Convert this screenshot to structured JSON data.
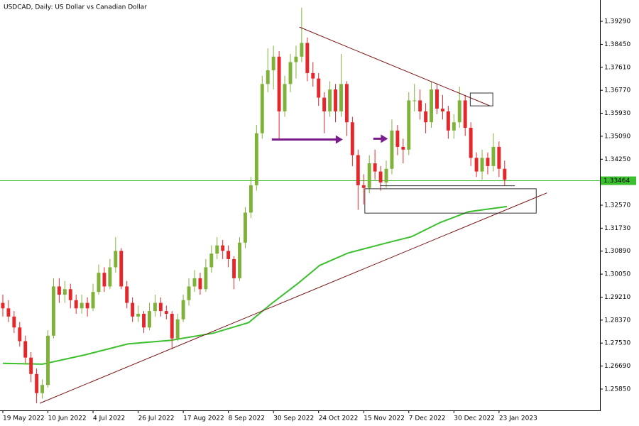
{
  "chart_data": {
    "type": "candlestick",
    "title": "USDCAD, Daily:  US Dollar vs Canadian Dollar",
    "up_color": "#7fb239",
    "down_color": "#e5262b",
    "candles": [
      [
        1.29,
        1.293,
        1.285,
        1.288
      ],
      [
        1.288,
        1.291,
        1.283,
        1.285
      ],
      [
        1.285,
        1.287,
        1.279,
        1.281
      ],
      [
        1.281,
        1.283,
        1.274,
        1.276
      ],
      [
        1.276,
        1.278,
        1.268,
        1.27
      ],
      [
        1.27,
        1.272,
        1.261,
        1.264
      ],
      [
        1.264,
        1.266,
        1.2533,
        1.257
      ],
      [
        1.257,
        1.262,
        1.255,
        1.26
      ],
      [
        1.26,
        1.28,
        1.259,
        1.278
      ],
      [
        1.278,
        1.299,
        1.277,
        1.296
      ],
      [
        1.296,
        1.299,
        1.29,
        1.293
      ],
      [
        1.293,
        1.298,
        1.29,
        1.295
      ],
      [
        1.295,
        1.297,
        1.288,
        1.291
      ],
      [
        1.291,
        1.293,
        1.286,
        1.288
      ],
      [
        1.288,
        1.293,
        1.286,
        1.29
      ],
      [
        1.29,
        1.292,
        1.285,
        1.288
      ],
      [
        1.288,
        1.297,
        1.287,
        1.294
      ],
      [
        1.294,
        1.304,
        1.293,
        1.301
      ],
      [
        1.301,
        1.303,
        1.294,
        1.296
      ],
      [
        1.296,
        1.306,
        1.295,
        1.303
      ],
      [
        1.303,
        1.314,
        1.301,
        1.309
      ],
      [
        1.309,
        1.31,
        1.295,
        1.296
      ],
      [
        1.296,
        1.298,
        1.288,
        1.29
      ],
      [
        1.29,
        1.292,
        1.283,
        1.285
      ],
      [
        1.285,
        1.289,
        1.283,
        1.286
      ],
      [
        1.286,
        1.287,
        1.279,
        1.281
      ],
      [
        1.281,
        1.29,
        1.28,
        1.287
      ],
      [
        1.287,
        1.293,
        1.285,
        1.29
      ],
      [
        1.29,
        1.292,
        1.285,
        1.287
      ],
      [
        1.287,
        1.289,
        1.284,
        1.286
      ],
      [
        1.286,
        1.287,
        1.273,
        1.277
      ],
      [
        1.277,
        1.286,
        1.276,
        1.284
      ],
      [
        1.284,
        1.293,
        1.283,
        1.291
      ],
      [
        1.291,
        1.299,
        1.289,
        1.296
      ],
      [
        1.296,
        1.302,
        1.294,
        1.299
      ],
      [
        1.299,
        1.301,
        1.293,
        1.295
      ],
      [
        1.295,
        1.306,
        1.294,
        1.303
      ],
      [
        1.303,
        1.311,
        1.301,
        1.308
      ],
      [
        1.308,
        1.314,
        1.306,
        1.311
      ],
      [
        1.311,
        1.313,
        1.306,
        1.309
      ],
      [
        1.309,
        1.311,
        1.303,
        1.306
      ],
      [
        1.306,
        1.307,
        1.295,
        1.299
      ],
      [
        1.299,
        1.314,
        1.298,
        1.312
      ],
      [
        1.312,
        1.325,
        1.31,
        1.323
      ],
      [
        1.323,
        1.336,
        1.321,
        1.333
      ],
      [
        1.333,
        1.355,
        1.331,
        1.352
      ],
      [
        1.352,
        1.373,
        1.35,
        1.37
      ],
      [
        1.37,
        1.383,
        1.367,
        1.375
      ],
      [
        1.375,
        1.384,
        1.368,
        1.38
      ],
      [
        1.38,
        1.382,
        1.35,
        1.36
      ],
      [
        1.36,
        1.373,
        1.358,
        1.37
      ],
      [
        1.37,
        1.381,
        1.367,
        1.378
      ],
      [
        1.378,
        1.384,
        1.372,
        1.38
      ],
      [
        1.38,
        1.3979,
        1.378,
        1.385
      ],
      [
        1.385,
        1.387,
        1.371,
        1.374
      ],
      [
        1.374,
        1.378,
        1.369,
        1.372
      ],
      [
        1.372,
        1.374,
        1.362,
        1.365
      ],
      [
        1.365,
        1.367,
        1.352,
        1.36
      ],
      [
        1.36,
        1.371,
        1.358,
        1.368
      ],
      [
        1.368,
        1.37,
        1.356,
        1.36
      ],
      [
        1.36,
        1.381,
        1.358,
        1.37
      ],
      [
        1.37,
        1.371,
        1.351,
        1.356
      ],
      [
        1.356,
        1.358,
        1.34,
        1.344
      ],
      [
        1.344,
        1.346,
        1.324,
        1.333
      ],
      [
        1.333,
        1.337,
        1.326,
        1.332
      ],
      [
        1.332,
        1.344,
        1.33,
        1.341
      ],
      [
        1.341,
        1.346,
        1.335,
        1.338
      ],
      [
        1.338,
        1.34,
        1.331,
        1.334
      ],
      [
        1.334,
        1.342,
        1.332,
        1.339
      ],
      [
        1.339,
        1.357,
        1.337,
        1.353
      ],
      [
        1.353,
        1.355,
        1.344,
        1.347
      ],
      [
        1.347,
        1.35,
        1.341,
        1.346
      ],
      [
        1.346,
        1.367,
        1.344,
        1.364
      ],
      [
        1.364,
        1.37,
        1.36,
        1.364
      ],
      [
        1.364,
        1.368,
        1.357,
        1.36
      ],
      [
        1.36,
        1.363,
        1.352,
        1.356
      ],
      [
        1.356,
        1.371,
        1.354,
        1.368
      ],
      [
        1.368,
        1.37,
        1.359,
        1.361
      ],
      [
        1.361,
        1.366,
        1.357,
        1.36
      ],
      [
        1.36,
        1.362,
        1.35,
        1.353
      ],
      [
        1.353,
        1.359,
        1.35,
        1.356
      ],
      [
        1.356,
        1.369,
        1.354,
        1.364
      ],
      [
        1.364,
        1.366,
        1.351,
        1.354
      ],
      [
        1.354,
        1.356,
        1.34,
        1.343
      ],
      [
        1.343,
        1.345,
        1.336,
        1.338
      ],
      [
        1.338,
        1.346,
        1.335,
        1.343
      ],
      [
        1.343,
        1.345,
        1.337,
        1.34
      ],
      [
        1.34,
        1.352,
        1.338,
        1.347
      ],
      [
        1.347,
        1.349,
        1.336,
        1.339
      ],
      [
        1.339,
        1.342,
        1.333,
        1.335
      ]
    ],
    "moving_average": {
      "color": "#3cbf2e",
      "x": [
        0,
        7.05,
        14.6,
        22.2,
        29.7,
        37.3,
        43.6,
        47.4,
        52.4,
        56.2,
        61.2,
        67.5,
        72.5,
        77.6,
        82.6,
        89.4
      ],
      "values": [
        1.2679,
        1.2676,
        1.271,
        1.275,
        1.2763,
        1.2789,
        1.2828,
        1.2893,
        1.2972,
        1.3037,
        1.3082,
        1.3116,
        1.3142,
        1.3194,
        1.3233,
        1.3252
      ]
    },
    "current_price": 1.33464,
    "current_price_color": "#3cbf2e",
    "drawings": {
      "trendlines": [
        {
          "x": [
            6.55,
            96.5
          ],
          "values": [
            1.2533,
            1.3302
          ],
          "color": "#7a1416"
        },
        {
          "x": [
            52.6,
            86.4
          ],
          "values": [
            1.3908,
            1.362
          ],
          "color": "#7a1416"
        },
        {
          "x": [
            66.9,
            90.8
          ],
          "values": [
            1.3328,
            1.3328
          ],
          "color": "#333333"
        }
      ],
      "rectangles": [
        {
          "x": [
            64.2,
            94.6
          ],
          "values": [
            1.3317,
            1.3228
          ],
          "color": "#333333"
        },
        {
          "x": [
            82.9,
            86.9
          ],
          "values": [
            1.3667,
            1.362
          ],
          "color": "#333333"
        }
      ],
      "arrows": [
        {
          "x": [
            47.7,
            60.3
          ],
          "values": [
            1.3497,
            1.3497
          ],
          "color": "#7b1c8c"
        },
        {
          "x": [
            65.7,
            68.3
          ],
          "values": [
            1.35,
            1.35
          ],
          "color": "#7b1c8c"
        }
      ]
    },
    "xlim": [
      -0.5,
      105.9
    ],
    "xticks": [
      {
        "value": 0,
        "label": "19 May 2022"
      },
      {
        "value": 8,
        "label": "10 Jun 2022"
      },
      {
        "value": 16,
        "label": "4 Jul 2022"
      },
      {
        "value": 24,
        "label": "26 Jul 2022"
      },
      {
        "value": 32,
        "label": "17 Aug 2022"
      },
      {
        "value": 40,
        "label": "8 Sep 2022"
      },
      {
        "value": 48,
        "label": "30 Sep 2022"
      },
      {
        "value": 56,
        "label": "24 Oct 2022"
      },
      {
        "value": 64,
        "label": "15 Nov 2022"
      },
      {
        "value": 72,
        "label": "7 Dec 2022"
      },
      {
        "value": 80,
        "label": "30 Dec 2022"
      },
      {
        "value": 88,
        "label": "23 Jan 2023"
      }
    ],
    "ylim": [
      1.2507,
      1.4007
    ],
    "yticks": [
      {
        "value": 1.3929,
        "label": "1.39290"
      },
      {
        "value": 1.3845,
        "label": "1.38450"
      },
      {
        "value": 1.3761,
        "label": "1.37610"
      },
      {
        "value": 1.3677,
        "label": "1.36770"
      },
      {
        "value": 1.3593,
        "label": "1.35930"
      },
      {
        "value": 1.3509,
        "label": "1.35090"
      },
      {
        "value": 1.3425,
        "label": "1.34250"
      },
      {
        "value": 1.3257,
        "label": "1.32570"
      },
      {
        "value": 1.3173,
        "label": "1.31730"
      },
      {
        "value": 1.3089,
        "label": "1.30890"
      },
      {
        "value": 1.3005,
        "label": "1.30050"
      },
      {
        "value": 1.2921,
        "label": "1.29210"
      },
      {
        "value": 1.2837,
        "label": "1.28370"
      },
      {
        "value": 1.2753,
        "label": "1.27530"
      },
      {
        "value": 1.2669,
        "label": "1.26690"
      },
      {
        "value": 1.2585,
        "label": "1.25850"
      }
    ]
  }
}
